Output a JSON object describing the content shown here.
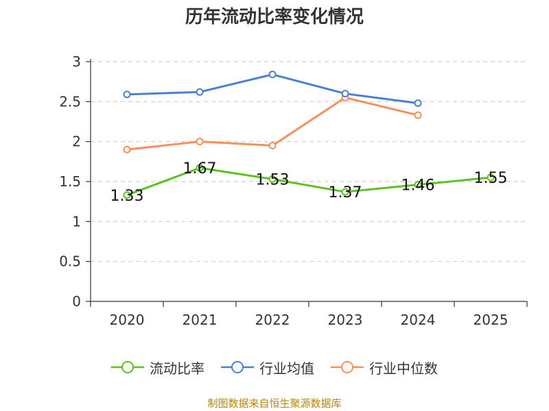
{
  "chart_data": {
    "type": "line",
    "title": "历年流动比率变化情况",
    "categories": [
      "2020",
      "2021",
      "2022",
      "2023",
      "2024",
      "2025"
    ],
    "ylim": [
      0,
      3
    ],
    "yticks": [
      "0",
      "0.5",
      "1",
      "1.5",
      "2",
      "2.5",
      "3"
    ],
    "ytick_values": [
      0,
      0.5,
      1,
      1.5,
      2,
      2.5,
      3
    ],
    "grid": true,
    "legend_position": "bottom",
    "series": [
      {
        "name": "流动比率",
        "color": "#5bc21f",
        "values": [
          1.33,
          1.67,
          1.53,
          1.37,
          1.46,
          1.55
        ],
        "labels": [
          "1.33",
          "1.67",
          "1.53",
          "1.37",
          "1.46",
          "1.55"
        ]
      },
      {
        "name": "行业均值",
        "color": "#4a7fd6",
        "values": [
          2.59,
          2.62,
          2.84,
          2.6,
          2.48,
          null
        ]
      },
      {
        "name": "行业中位数",
        "color": "#f5905a",
        "values": [
          1.9,
          2.0,
          1.95,
          2.55,
          2.33,
          null
        ]
      }
    ]
  },
  "source": "制图数据来自恒生聚源数据库"
}
